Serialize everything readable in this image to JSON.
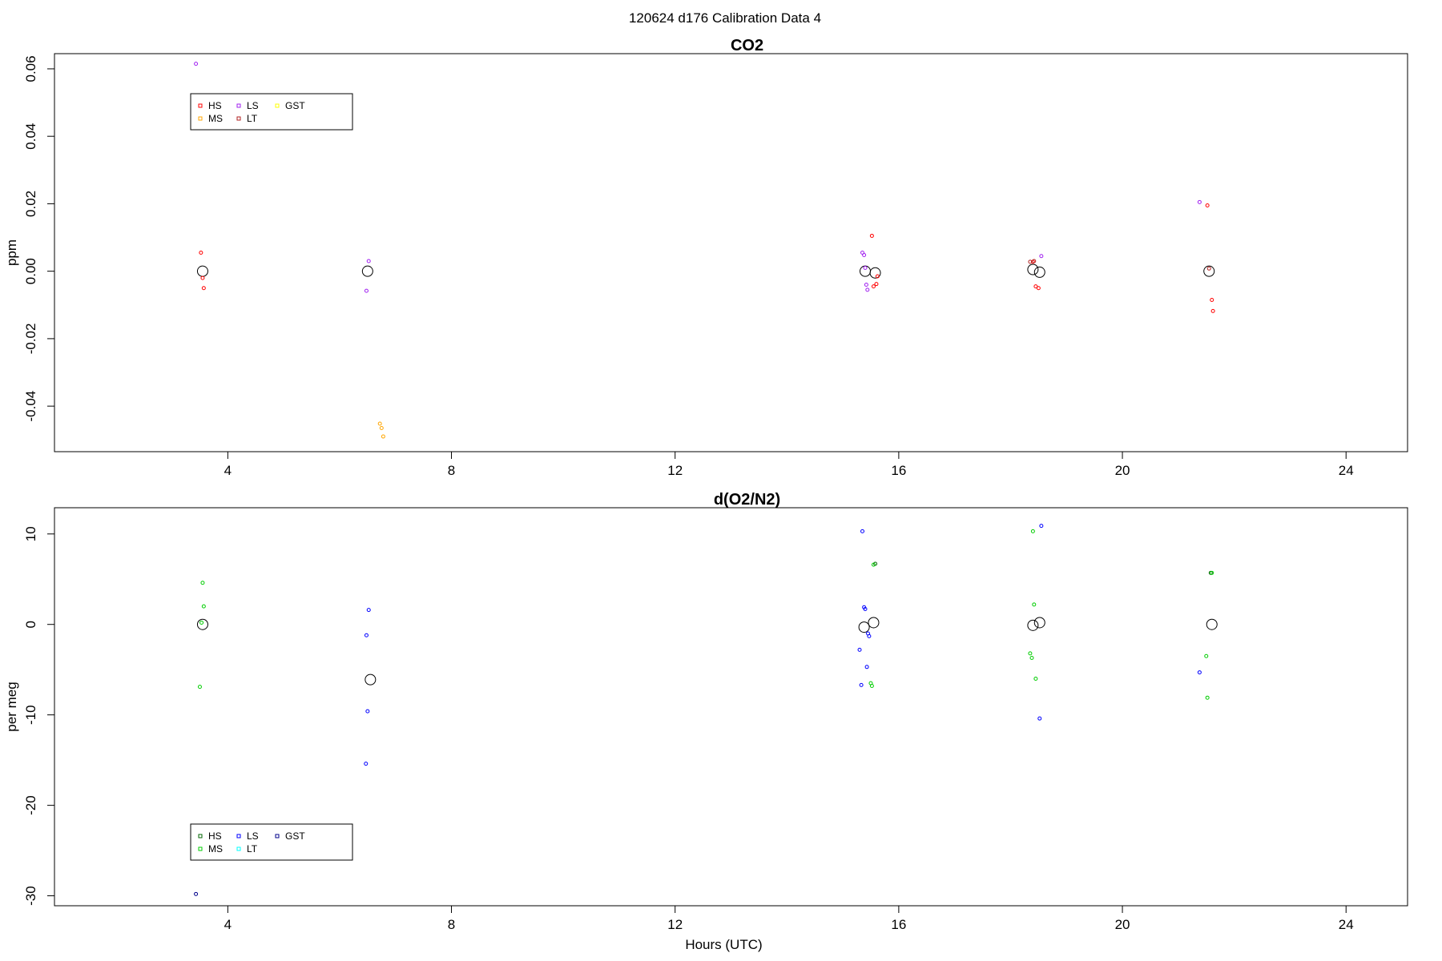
{
  "page_title": "120624   d176   Calibration Data 4",
  "chart_data": [
    {
      "type": "scatter",
      "title": "CO2",
      "xlabel": "",
      "ylabel": "ppm",
      "xlim": [
        0.9,
        25.1
      ],
      "ylim": [
        -0.0535,
        0.0645
      ],
      "x_ticks": [
        4,
        8,
        12,
        16,
        20,
        24
      ],
      "y_ticks": [
        -0.04,
        -0.02,
        0.0,
        0.02,
        0.04,
        0.06
      ],
      "y_tick_labels": [
        "-0.04",
        "-0.02",
        "0.00",
        "0.02",
        "0.04",
        "0.06"
      ],
      "grid": false,
      "legend_position": "top-left",
      "legend": [
        {
          "label": "HS",
          "color": "#ff0000"
        },
        {
          "label": "MS",
          "color": "#ffa500"
        },
        {
          "label": "LS",
          "color": "#a020f0"
        },
        {
          "label": "LT",
          "color": "#b22222"
        },
        {
          "label": "GST",
          "color": "#ffff00"
        }
      ],
      "series": [
        {
          "name": "HS",
          "color": "#ff0000",
          "points": [
            [
              3.52,
              0.0055
            ],
            [
              3.55,
              -0.002
            ],
            [
              3.57,
              -0.005
            ],
            [
              15.52,
              0.0105
            ],
            [
              15.55,
              -0.0045
            ],
            [
              15.6,
              -0.0038
            ],
            [
              15.62,
              -0.0015
            ],
            [
              18.4,
              0.0028
            ],
            [
              18.45,
              -0.0045
            ],
            [
              18.5,
              -0.005
            ],
            [
              21.52,
              0.0195
            ],
            [
              21.6,
              -0.0085
            ],
            [
              21.62,
              -0.0118
            ]
          ]
        },
        {
          "name": "MS",
          "color": "#ffa500",
          "points": [
            [
              6.72,
              -0.0452
            ],
            [
              6.75,
              -0.0465
            ],
            [
              6.78,
              -0.049
            ]
          ]
        },
        {
          "name": "LS",
          "color": "#a020f0",
          "points": [
            [
              3.43,
              0.0615
            ],
            [
              6.52,
              0.003
            ],
            [
              6.48,
              -0.0058
            ],
            [
              15.35,
              0.0055
            ],
            [
              15.38,
              0.0048
            ],
            [
              15.4,
              0.001
            ],
            [
              15.42,
              -0.004
            ],
            [
              15.44,
              -0.0055
            ],
            [
              18.55,
              0.0045
            ],
            [
              21.38,
              0.0205
            ]
          ]
        },
        {
          "name": "LT",
          "color": "#b22222",
          "points": [
            [
              18.35,
              0.0028
            ],
            [
              18.42,
              0.003
            ],
            [
              21.55,
              0.0008
            ]
          ]
        },
        {
          "name": "GST",
          "color": "#ffff00",
          "points": []
        }
      ],
      "means": [
        [
          3.55,
          0.0
        ],
        [
          6.5,
          0.0
        ],
        [
          15.4,
          0.0
        ],
        [
          15.58,
          -0.0005
        ],
        [
          18.4,
          0.0005
        ],
        [
          18.52,
          -0.0003
        ],
        [
          21.55,
          0.0
        ]
      ]
    },
    {
      "type": "scatter",
      "title": "d(O2/N2)",
      "xlabel": "Hours (UTC)",
      "ylabel": "per meg",
      "xlim": [
        0.9,
        25.1
      ],
      "ylim": [
        -31.1,
        12.9
      ],
      "x_ticks": [
        4,
        8,
        12,
        16,
        20,
        24
      ],
      "y_ticks": [
        -30,
        -20,
        -10,
        0,
        10
      ],
      "y_tick_labels": [
        "-30",
        "-20",
        "-10",
        "0",
        "10"
      ],
      "grid": false,
      "legend_position": "bottom-left",
      "legend": [
        {
          "label": "HS",
          "color": "#006400"
        },
        {
          "label": "MS",
          "color": "#00cd00"
        },
        {
          "label": "LS",
          "color": "#0000ff"
        },
        {
          "label": "LT",
          "color": "#00ffff"
        },
        {
          "label": "GST",
          "color": "#00008b"
        }
      ],
      "series": [
        {
          "name": "HS",
          "color": "#006400",
          "points": [
            [
              15.58,
              6.7
            ],
            [
              21.58,
              5.7
            ]
          ]
        },
        {
          "name": "MS",
          "color": "#00cd00",
          "points": [
            [
              3.55,
              4.6
            ],
            [
              3.57,
              2.0
            ],
            [
              3.53,
              0.2
            ],
            [
              3.5,
              -6.9
            ],
            [
              15.55,
              6.6
            ],
            [
              15.5,
              -6.5
            ],
            [
              15.52,
              -6.8
            ],
            [
              18.4,
              10.3
            ],
            [
              18.42,
              2.2
            ],
            [
              18.35,
              -3.2
            ],
            [
              18.38,
              -3.7
            ],
            [
              18.45,
              -6.0
            ],
            [
              21.6,
              5.7
            ],
            [
              21.5,
              -3.5
            ],
            [
              21.52,
              -8.1
            ]
          ]
        },
        {
          "name": "LS",
          "color": "#0000ff",
          "points": [
            [
              6.52,
              1.6
            ],
            [
              6.48,
              -1.2
            ],
            [
              6.5,
              -9.6
            ],
            [
              6.47,
              -15.4
            ],
            [
              15.35,
              10.3
            ],
            [
              15.38,
              1.9
            ],
            [
              15.4,
              1.7
            ],
            [
              15.3,
              -2.8
            ],
            [
              15.45,
              -1.0
            ],
            [
              15.47,
              -1.3
            ],
            [
              15.43,
              -4.7
            ],
            [
              15.33,
              -6.7
            ],
            [
              18.55,
              10.9
            ],
            [
              18.52,
              -10.4
            ],
            [
              21.38,
              -5.3
            ]
          ]
        },
        {
          "name": "LT",
          "color": "#00ffff",
          "points": []
        },
        {
          "name": "GST",
          "color": "#00008b",
          "points": [
            [
              3.43,
              -29.8
            ]
          ]
        }
      ],
      "means": [
        [
          3.55,
          0.0
        ],
        [
          6.55,
          -6.1
        ],
        [
          15.38,
          -0.3
        ],
        [
          15.55,
          0.2
        ],
        [
          18.4,
          -0.1
        ],
        [
          18.52,
          0.2
        ],
        [
          21.6,
          0.0
        ]
      ]
    }
  ]
}
